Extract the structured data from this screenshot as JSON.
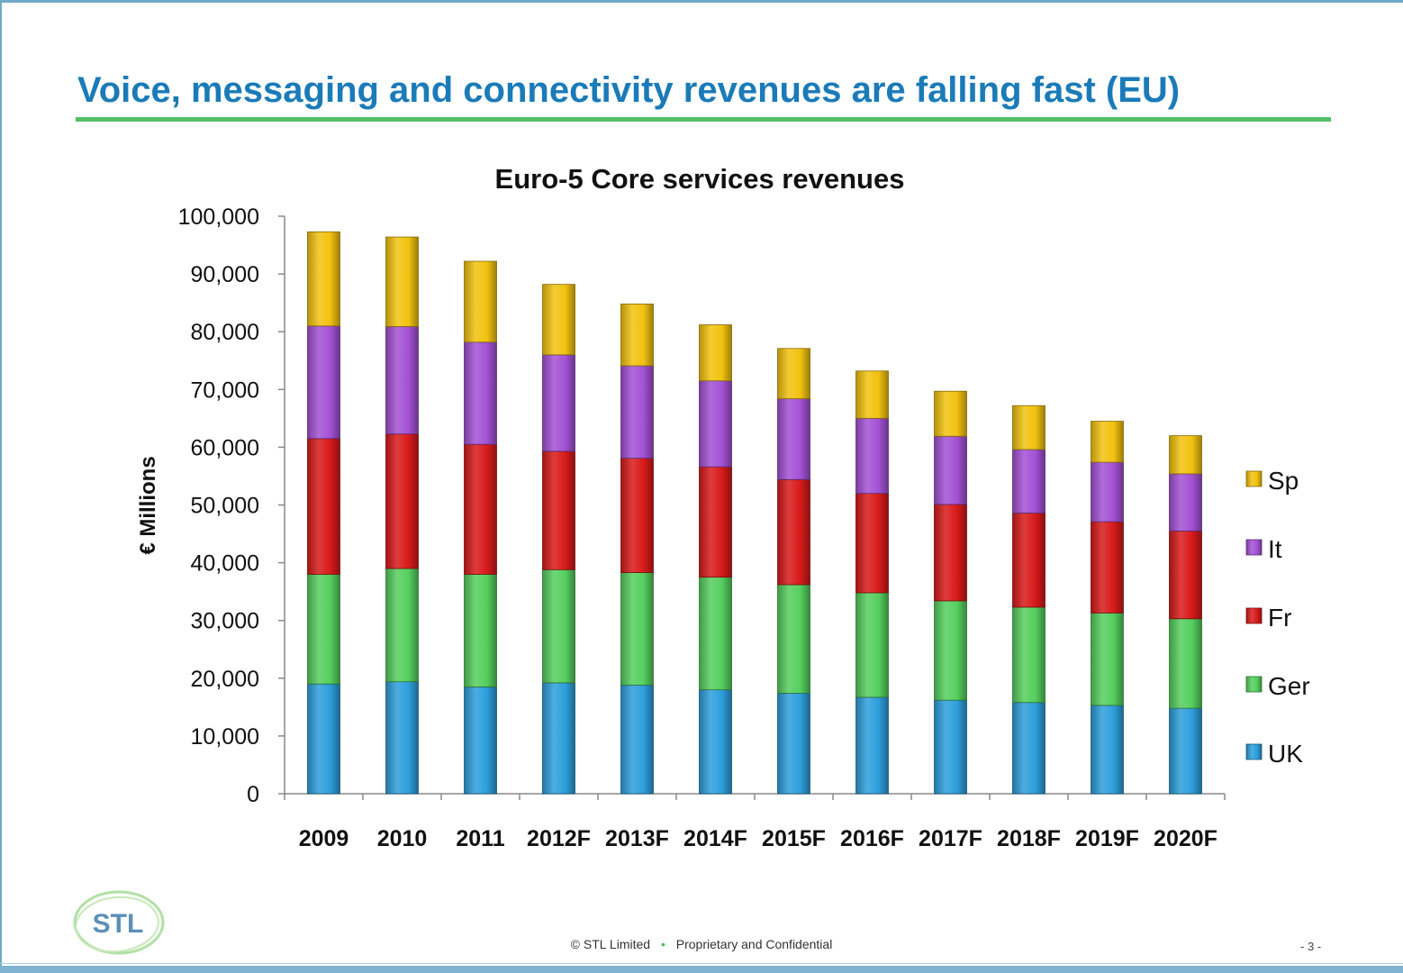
{
  "slide": {
    "title": "Voice, messaging and connectivity revenues are falling fast (EU)"
  },
  "footer": {
    "copyright_symbol": "©",
    "company": "STL Limited",
    "separator": "•",
    "notice": "Proprietary and Confidential",
    "page": "- 3 -"
  },
  "logo": {
    "text": "STL",
    "icon": "stl-logo"
  },
  "colors": {
    "title": "#1a7bb8",
    "underline": "#52c169",
    "UK": "#2d9fdc",
    "Ger": "#55cf5e",
    "Fr": "#d81a1a",
    "It": "#a351d5",
    "Sp": "#f2c20f"
  },
  "chart_data": {
    "type": "bar",
    "stacked": true,
    "title": "Euro-5 Core services revenues",
    "ylabel": "€ Millions",
    "xlabel": "",
    "ylim": [
      0,
      100000
    ],
    "yticks": [
      "0",
      "10,000",
      "20,000",
      "30,000",
      "40,000",
      "50,000",
      "60,000",
      "70,000",
      "80,000",
      "90,000",
      "100,000"
    ],
    "categories": [
      "2009",
      "2010",
      "2011",
      "2012F",
      "2013F",
      "2014F",
      "2015F",
      "2016F",
      "2017F",
      "2018F",
      "2019F",
      "2020F"
    ],
    "legend_position": "right",
    "grid": false,
    "series": [
      {
        "name": "UK",
        "values": [
          19000,
          19400,
          18500,
          19200,
          18800,
          18000,
          17400,
          16700,
          16200,
          15800,
          15300,
          14800
        ]
      },
      {
        "name": "Ger",
        "values": [
          19000,
          19600,
          19500,
          19600,
          19500,
          19500,
          18800,
          18100,
          17200,
          16500,
          16000,
          15500
        ]
      },
      {
        "name": "Fr",
        "values": [
          23500,
          23300,
          22500,
          20500,
          19800,
          19100,
          18200,
          17200,
          16700,
          16300,
          15800,
          15200
        ]
      },
      {
        "name": "It",
        "values": [
          19500,
          18600,
          17700,
          16700,
          16000,
          14900,
          14000,
          13000,
          11800,
          11000,
          10300,
          9900
        ]
      },
      {
        "name": "Sp",
        "values": [
          16300,
          15500,
          14000,
          12200,
          10700,
          9700,
          8700,
          8200,
          7800,
          7600,
          7100,
          6600
        ]
      }
    ],
    "legend_order": [
      "Sp",
      "It",
      "Fr",
      "Ger",
      "UK"
    ]
  }
}
